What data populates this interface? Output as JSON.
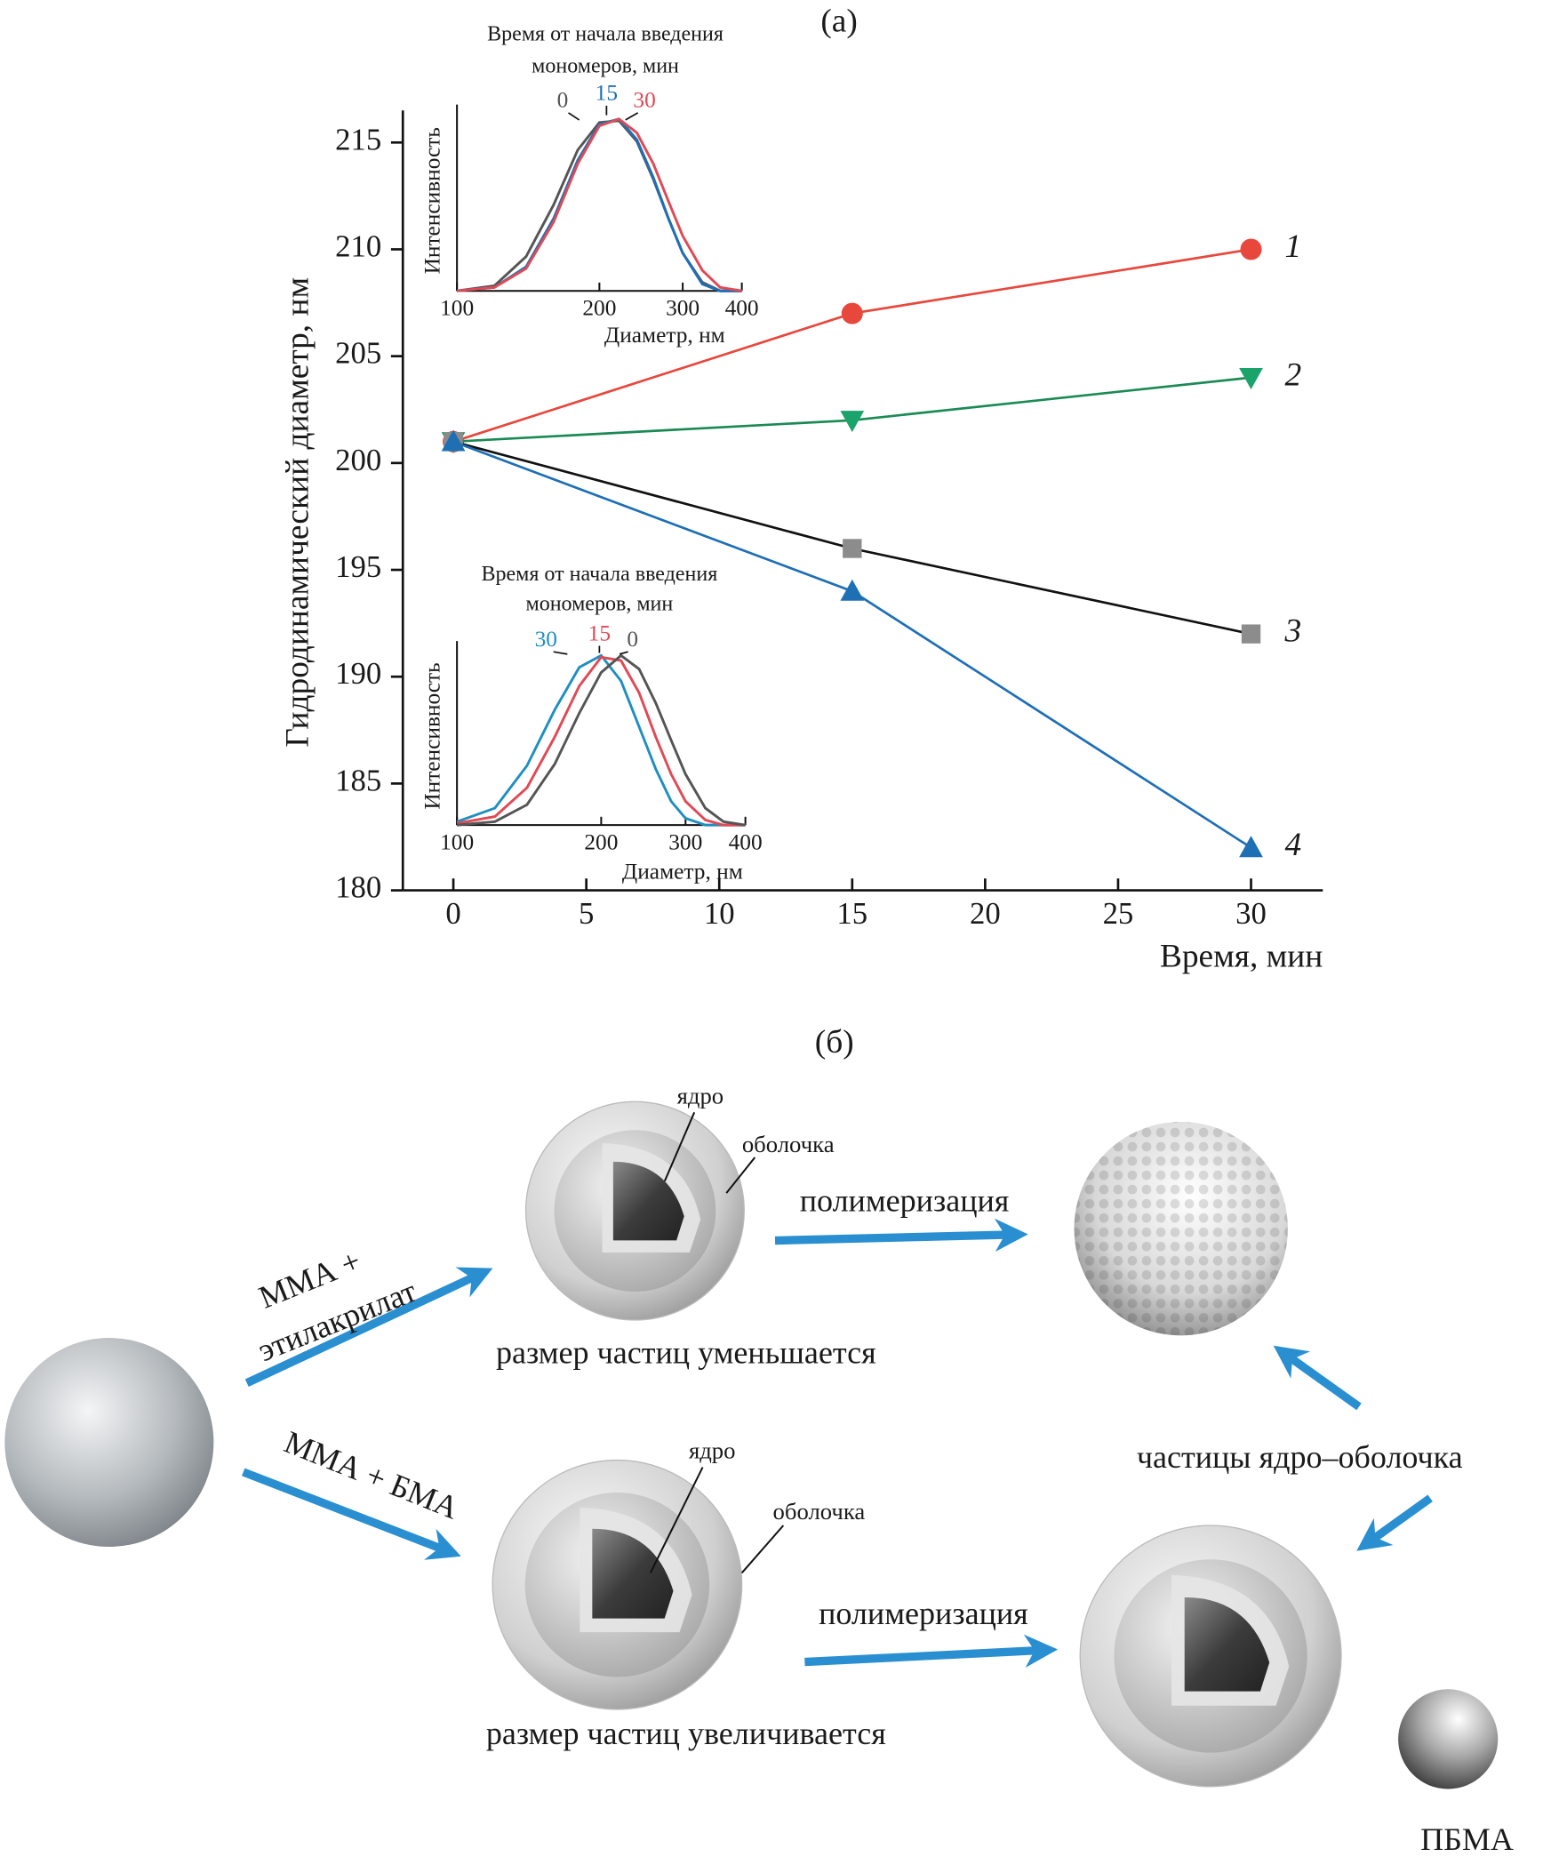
{
  "chart_data": [
    {
      "type": "line",
      "panel_label": "(а)",
      "xlabel": "Время, мин",
      "ylabel": "Гидродинамический диаметр, нм",
      "x": [
        0,
        15,
        30
      ],
      "xlim": [
        -1.9,
        32.7
      ],
      "xticks": [
        0,
        5,
        10,
        15,
        20,
        25,
        30
      ],
      "ylim": [
        180,
        216.5
      ],
      "yticks": [
        180,
        185,
        190,
        195,
        200,
        205,
        210,
        215
      ],
      "series": [
        {
          "name": "1",
          "color": "#e8473c",
          "marker": "circle",
          "marker_color": "#e8473c",
          "values": [
            201,
            207,
            210
          ]
        },
        {
          "name": "2",
          "color": "#1a8a55",
          "marker": "triangle-down",
          "marker_color": "#1aa36b",
          "values": [
            201,
            202,
            204
          ]
        },
        {
          "name": "3",
          "color": "#111111",
          "marker": "square",
          "marker_color": "#8c8c8c",
          "values": [
            201,
            196,
            192
          ]
        },
        {
          "name": "4",
          "color": "#1f6fb5",
          "marker": "triangle-up",
          "marker_color": "#1f6fb5",
          "values": [
            201,
            194,
            182
          ]
        }
      ]
    },
    {
      "type": "line",
      "title": [
        "Время от начала введения",
        "мономеров, мин"
      ],
      "xlabel": "Диаметр, нм",
      "ylabel": "Интенсивность",
      "log_x": true,
      "x": [
        100,
        120,
        140,
        160,
        180,
        200,
        220,
        240,
        260,
        280,
        300,
        330,
        360,
        400
      ],
      "xlim": [
        100,
        400
      ],
      "xticks": [
        100,
        200,
        300,
        400
      ],
      "ylim": [
        0,
        1.05
      ],
      "series": [
        {
          "name": "0",
          "color": "#555555",
          "values": [
            0,
            0.03,
            0.2,
            0.5,
            0.82,
            0.98,
            0.99,
            0.87,
            0.65,
            0.42,
            0.22,
            0.05,
            0,
            0
          ]
        },
        {
          "name": "15",
          "color": "#1f6fb5",
          "values": [
            0,
            0.02,
            0.14,
            0.42,
            0.76,
            0.97,
            1.0,
            0.88,
            0.66,
            0.42,
            0.22,
            0.04,
            0,
            0
          ]
        },
        {
          "name": "30",
          "color": "#e04a55",
          "values": [
            0,
            0.02,
            0.13,
            0.4,
            0.74,
            0.96,
            1.0,
            0.92,
            0.74,
            0.52,
            0.32,
            0.12,
            0.02,
            0
          ]
        }
      ]
    },
    {
      "type": "line",
      "title": [
        "Время от начала введения",
        "мономеров, мин"
      ],
      "xlabel": "Диаметр, нм",
      "ylabel": "Интенсивность",
      "log_x": true,
      "x": [
        100,
        120,
        140,
        160,
        180,
        200,
        220,
        240,
        260,
        280,
        300,
        330,
        360,
        400
      ],
      "xlim": [
        100,
        400
      ],
      "xticks": [
        100,
        200,
        300,
        400
      ],
      "ylim": [
        0,
        1.05
      ],
      "series": [
        {
          "name": "30",
          "color": "#1f8fc0",
          "values": [
            0.02,
            0.1,
            0.35,
            0.68,
            0.93,
            1.0,
            0.85,
            0.58,
            0.33,
            0.14,
            0.04,
            0,
            0,
            0
          ]
        },
        {
          "name": "15",
          "color": "#e04a55",
          "values": [
            0.01,
            0.05,
            0.22,
            0.52,
            0.82,
            0.99,
            0.97,
            0.78,
            0.52,
            0.3,
            0.14,
            0.03,
            0,
            0
          ]
        },
        {
          "name": "0",
          "color": "#555555",
          "values": [
            0,
            0.02,
            0.12,
            0.36,
            0.66,
            0.9,
            1.0,
            0.92,
            0.72,
            0.5,
            0.3,
            0.1,
            0.02,
            0
          ]
        }
      ]
    }
  ],
  "diagram": {
    "panel_label": "(б)",
    "top": {
      "reagent": [
        "ММА +",
        "этилакрилат"
      ],
      "core": "ядро",
      "shell": "оболочка",
      "step": "полимеризация",
      "result": "размер частиц уменьшается"
    },
    "bottom": {
      "reagent": "ММА + БМА",
      "core": "ядро",
      "shell": "оболочка",
      "step": "полимеризация",
      "result": "размер частиц увеличивается"
    },
    "core_shell": "частицы ядро–оболочка",
    "pbma": "ПБМА"
  }
}
